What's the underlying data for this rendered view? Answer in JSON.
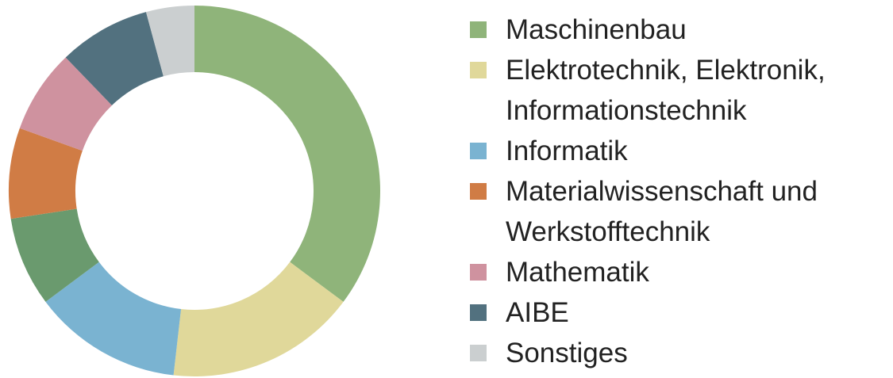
{
  "chart_data": {
    "type": "donut",
    "categories": [
      "Maschinenbau",
      "Elektrotechnik, Elektronik, Informationstechnik",
      "Informatik",
      null,
      "Materialwissenschaft und Werkstofftechnik",
      "Mathematik",
      "AIBE",
      "Sonstiges"
    ],
    "values": [
      35.2,
      16.6,
      13,
      7.8,
      7.9,
      7.3,
      8,
      4.2
    ],
    "colors": [
      "#8fb47a",
      "#e0d89a",
      "#7ab3d1",
      "#6a9a6e",
      "#d07c45",
      "#cf929f",
      "#52717f",
      "#cbcfd0"
    ],
    "legend": "right"
  }
}
